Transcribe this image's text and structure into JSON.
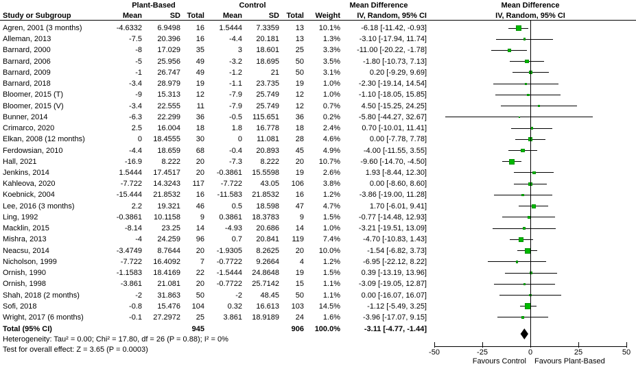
{
  "header": {
    "group_plant": "Plant-Based",
    "group_control": "Control",
    "md_title_text": "Mean Difference",
    "md_title_plot": "Mean Difference",
    "col_study": "Study or Subgroup",
    "col_mean_p": "Mean",
    "col_sd_p": "SD",
    "col_total_p": "Total",
    "col_mean_c": "Mean",
    "col_sd_c": "SD",
    "col_total_c": "Total",
    "col_weight": "Weight",
    "col_ci_text": "IV, Random, 95% CI",
    "col_ci_plot": "IV, Random, 95% CI"
  },
  "chart_data": {
    "type": "forest",
    "effect_measure": "Mean Difference",
    "model": "IV, Random, 95% CI",
    "studies": [
      {
        "name": "Agren, 2001 (3 months)",
        "p_mean": "-4.6332",
        "p_sd": "6.9498",
        "p_total": "16",
        "c_mean": "1.5444",
        "c_sd": "7.3359",
        "c_total": "13",
        "weight": "10.1%",
        "ci_text": "-6.18 [-11.42, -0.93]",
        "md": -6.18,
        "lo": -11.42,
        "hi": -0.93,
        "w": 10.1
      },
      {
        "name": "Alleman, 2013",
        "p_mean": "-7.5",
        "p_sd": "20.396",
        "p_total": "16",
        "c_mean": "-4.4",
        "c_sd": "20.181",
        "c_total": "13",
        "weight": "1.3%",
        "ci_text": "-3.10 [-17.94, 11.74]",
        "md": -3.1,
        "lo": -17.94,
        "hi": 11.74,
        "w": 1.3
      },
      {
        "name": "Barnard, 2000",
        "p_mean": "-8",
        "p_sd": "17.029",
        "p_total": "35",
        "c_mean": "3",
        "c_sd": "18.601",
        "c_total": "25",
        "weight": "3.3%",
        "ci_text": "-11.00 [-20.22, -1.78]",
        "md": -11.0,
        "lo": -20.22,
        "hi": -1.78,
        "w": 3.3
      },
      {
        "name": "Barnard, 2006",
        "p_mean": "-5",
        "p_sd": "25.956",
        "p_total": "49",
        "c_mean": "-3.2",
        "c_sd": "18.695",
        "c_total": "50",
        "weight": "3.5%",
        "ci_text": "-1.80 [-10.73, 7.13]",
        "md": -1.8,
        "lo": -10.73,
        "hi": 7.13,
        "w": 3.5
      },
      {
        "name": "Barnard, 2009",
        "p_mean": "-1",
        "p_sd": "26.747",
        "p_total": "49",
        "c_mean": "-1.2",
        "c_sd": "21",
        "c_total": "50",
        "weight": "3.1%",
        "ci_text": "0.20 [-9.29, 9.69]",
        "md": 0.2,
        "lo": -9.29,
        "hi": 9.69,
        "w": 3.1
      },
      {
        "name": "Barnard, 2018",
        "p_mean": "-3.4",
        "p_sd": "28.979",
        "p_total": "19",
        "c_mean": "-1.1",
        "c_sd": "23.735",
        "c_total": "19",
        "weight": "1.0%",
        "ci_text": "-2.30 [-19.14, 14.54]",
        "md": -2.3,
        "lo": -19.14,
        "hi": 14.54,
        "w": 1.0
      },
      {
        "name": "Bloomer, 2015 (T)",
        "p_mean": "-9",
        "p_sd": "15.313",
        "p_total": "12",
        "c_mean": "-7.9",
        "c_sd": "25.749",
        "c_total": "12",
        "weight": "1.0%",
        "ci_text": "-1.10 [-18.05, 15.85]",
        "md": -1.1,
        "lo": -18.05,
        "hi": 15.85,
        "w": 1.0
      },
      {
        "name": "Bloomer, 2015 (V)",
        "p_mean": "-3.4",
        "p_sd": "22.555",
        "p_total": "11",
        "c_mean": "-7.9",
        "c_sd": "25.749",
        "c_total": "12",
        "weight": "0.7%",
        "ci_text": "4.50 [-15.25, 24.25]",
        "md": 4.5,
        "lo": -15.25,
        "hi": 24.25,
        "w": 0.7
      },
      {
        "name": "Bunner, 2014",
        "p_mean": "-6.3",
        "p_sd": "22.299",
        "p_total": "36",
        "c_mean": "-0.5",
        "c_sd": "115.651",
        "c_total": "36",
        "weight": "0.2%",
        "ci_text": "-5.80 [-44.27, 32.67]",
        "md": -5.8,
        "lo": -44.27,
        "hi": 32.67,
        "w": 0.2
      },
      {
        "name": "Crimarco, 2020",
        "p_mean": "2.5",
        "p_sd": "16.004",
        "p_total": "18",
        "c_mean": "1.8",
        "c_sd": "16.778",
        "c_total": "18",
        "weight": "2.4%",
        "ci_text": "0.70 [-10.01, 11.41]",
        "md": 0.7,
        "lo": -10.01,
        "hi": 11.41,
        "w": 2.4
      },
      {
        "name": "Elkan, 2008 (12 months)",
        "p_mean": "0",
        "p_sd": "18.4555",
        "p_total": "30",
        "c_mean": "0",
        "c_sd": "11.081",
        "c_total": "28",
        "weight": "4.6%",
        "ci_text": "0.00 [-7.78, 7.78]",
        "md": 0.0,
        "lo": -7.78,
        "hi": 7.78,
        "w": 4.6
      },
      {
        "name": "Ferdowsian, 2010",
        "p_mean": "-4.4",
        "p_sd": "18.659",
        "p_total": "68",
        "c_mean": "-0.4",
        "c_sd": "20.893",
        "c_total": "45",
        "weight": "4.9%",
        "ci_text": "-4.00 [-11.55, 3.55]",
        "md": -4.0,
        "lo": -11.55,
        "hi": 3.55,
        "w": 4.9
      },
      {
        "name": "Hall, 2021",
        "p_mean": "-16.9",
        "p_sd": "8.222",
        "p_total": "20",
        "c_mean": "-7.3",
        "c_sd": "8.222",
        "c_total": "20",
        "weight": "10.7%",
        "ci_text": "-9.60 [-14.70, -4.50]",
        "md": -9.6,
        "lo": -14.7,
        "hi": -4.5,
        "w": 10.7
      },
      {
        "name": "Jenkins, 2014",
        "p_mean": "1.5444",
        "p_sd": "17.4517",
        "p_total": "20",
        "c_mean": "-0.3861",
        "c_sd": "15.5598",
        "c_total": "19",
        "weight": "2.6%",
        "ci_text": "1.93 [-8.44, 12.30]",
        "md": 1.93,
        "lo": -8.44,
        "hi": 12.3,
        "w": 2.6
      },
      {
        "name": "Kahleova, 2020",
        "p_mean": "-7.722",
        "p_sd": "14.3243",
        "p_total": "117",
        "c_mean": "-7.722",
        "c_sd": "43.05",
        "c_total": "106",
        "weight": "3.8%",
        "ci_text": "0.00 [-8.60, 8.60]",
        "md": 0.0,
        "lo": -8.6,
        "hi": 8.6,
        "w": 3.8
      },
      {
        "name": "Koebnick, 2004",
        "p_mean": "-15.444",
        "p_sd": "21.8532",
        "p_total": "16",
        "c_mean": "-11.583",
        "c_sd": "21.8532",
        "c_total": "16",
        "weight": "1.2%",
        "ci_text": "-3.86 [-19.00, 11.28]",
        "md": -3.86,
        "lo": -19.0,
        "hi": 11.28,
        "w": 1.2
      },
      {
        "name": "Lee, 2016 (3 months)",
        "p_mean": "2.2",
        "p_sd": "19.321",
        "p_total": "46",
        "c_mean": "0.5",
        "c_sd": "18.598",
        "c_total": "47",
        "weight": "4.7%",
        "ci_text": "1.70 [-6.01, 9.41]",
        "md": 1.7,
        "lo": -6.01,
        "hi": 9.41,
        "w": 4.7
      },
      {
        "name": "Ling, 1992",
        "p_mean": "-0.3861",
        "p_sd": "10.1158",
        "p_total": "9",
        "c_mean": "0.3861",
        "c_sd": "18.3783",
        "c_total": "9",
        "weight": "1.5%",
        "ci_text": "-0.77 [-14.48, 12.93]",
        "md": -0.77,
        "lo": -14.48,
        "hi": 12.93,
        "w": 1.5
      },
      {
        "name": "Macklin, 2015",
        "p_mean": "-8.14",
        "p_sd": "23.25",
        "p_total": "14",
        "c_mean": "-4.93",
        "c_sd": "20.686",
        "c_total": "14",
        "weight": "1.0%",
        "ci_text": "-3.21 [-19.51, 13.09]",
        "md": -3.21,
        "lo": -19.51,
        "hi": 13.09,
        "w": 1.0
      },
      {
        "name": "Mishra, 2013",
        "p_mean": "-4",
        "p_sd": "24.259",
        "p_total": "96",
        "c_mean": "0.7",
        "c_sd": "20.841",
        "c_total": "119",
        "weight": "7.4%",
        "ci_text": "-4.70 [-10.83, 1.43]",
        "md": -4.7,
        "lo": -10.83,
        "hi": 1.43,
        "w": 7.4
      },
      {
        "name": "Neacsu, 2014",
        "p_mean": "-3.4749",
        "p_sd": "8.7644",
        "p_total": "20",
        "c_mean": "-1.9305",
        "c_sd": "8.2625",
        "c_total": "20",
        "weight": "10.0%",
        "ci_text": "-1.54 [-6.82, 3.73]",
        "md": -1.54,
        "lo": -6.82,
        "hi": 3.73,
        "w": 10.0
      },
      {
        "name": "Nicholson, 1999",
        "p_mean": "-7.722",
        "p_sd": "16.4092",
        "p_total": "7",
        "c_mean": "-0.7722",
        "c_sd": "9.2664",
        "c_total": "4",
        "weight": "1.2%",
        "ci_text": "-6.95 [-22.12, 8.22]",
        "md": -6.95,
        "lo": -22.12,
        "hi": 8.22,
        "w": 1.2
      },
      {
        "name": "Ornish, 1990",
        "p_mean": "-1.1583",
        "p_sd": "18.4169",
        "p_total": "22",
        "c_mean": "-1.5444",
        "c_sd": "24.8648",
        "c_total": "19",
        "weight": "1.5%",
        "ci_text": "0.39 [-13.19, 13.96]",
        "md": 0.39,
        "lo": -13.19,
        "hi": 13.96,
        "w": 1.5
      },
      {
        "name": "Ornish, 1998",
        "p_mean": "-3.861",
        "p_sd": "21.081",
        "p_total": "20",
        "c_mean": "-0.7722",
        "c_sd": "25.7142",
        "c_total": "15",
        "weight": "1.1%",
        "ci_text": "-3.09 [-19.05, 12.87]",
        "md": -3.09,
        "lo": -19.05,
        "hi": 12.87,
        "w": 1.1
      },
      {
        "name": "Shah, 2018 (2 months)",
        "p_mean": "-2",
        "p_sd": "31.863",
        "p_total": "50",
        "c_mean": "-2",
        "c_sd": "48.45",
        "c_total": "50",
        "weight": "1.1%",
        "ci_text": "0.00 [-16.07, 16.07]",
        "md": 0.0,
        "lo": -16.07,
        "hi": 16.07,
        "w": 1.1
      },
      {
        "name": "Sofi, 2018",
        "p_mean": "-0.8",
        "p_sd": "15.476",
        "p_total": "104",
        "c_mean": "0.32",
        "c_sd": "16.613",
        "c_total": "103",
        "weight": "14.5%",
        "ci_text": "-1.12 [-5.49, 3.25]",
        "md": -1.12,
        "lo": -5.49,
        "hi": 3.25,
        "w": 14.5
      },
      {
        "name": "Wright, 2017 (6 months)",
        "p_mean": "-0.1",
        "p_sd": "27.2972",
        "p_total": "25",
        "c_mean": "3.861",
        "c_sd": "18.9189",
        "c_total": "24",
        "weight": "1.6%",
        "ci_text": "-3.96 [-17.07, 9.15]",
        "md": -3.96,
        "lo": -17.07,
        "hi": 9.15,
        "w": 1.6
      }
    ],
    "total_row": {
      "label": "Total (95% CI)",
      "plant_total": "945",
      "control_total": "906",
      "weight": "100.0%",
      "ci_text": "-3.11 [-4.77, -1.44]",
      "md": -3.11,
      "lo": -4.77,
      "hi": -1.44
    },
    "footnotes": [
      "Heterogeneity: Tau² = 0.00; Chi² = 17.80, df = 26 (P = 0.88); I² = 0%",
      "Test for overall effect: Z = 3.65 (P = 0.0003)"
    ],
    "axis": {
      "min": -50,
      "max": 50,
      "ticks": [
        -50,
        -25,
        0,
        25,
        50
      ],
      "tick_labels": [
        "-50",
        "-25",
        "0",
        "25",
        "50"
      ],
      "favours_left": "Favours Control",
      "favours_right": "Favours Plant-Based"
    },
    "colors": {
      "marker_fill": "#00b800",
      "marker_border": "#009100",
      "diamond": "#000000",
      "line": "#000000"
    }
  }
}
